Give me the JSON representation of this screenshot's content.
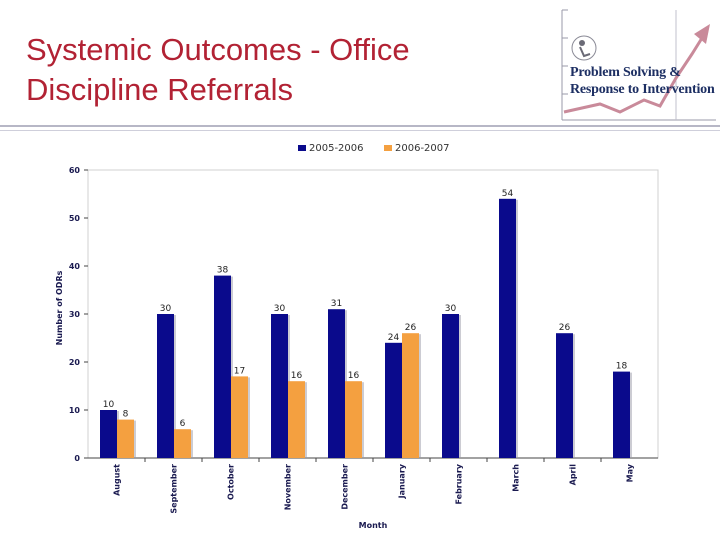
{
  "slide": {
    "title_line1": "Systemic Outcomes - Office",
    "title_line2": "Discipline Referrals"
  },
  "logo": {
    "line1": "Problem Solving &",
    "line2": "Response to Intervention"
  },
  "colors": {
    "title": "#b22234",
    "series_2005": "#0a0a8c",
    "series_2006": "#f4a040",
    "logo_text": "#1d2f63"
  },
  "chart_data": {
    "type": "bar",
    "xlabel": "Month",
    "ylabel": "Number of ODRs",
    "ylim": [
      0,
      60
    ],
    "yticks": [
      0,
      10,
      20,
      30,
      40,
      50,
      60
    ],
    "legend_position": "top-center",
    "grid": false,
    "categories": [
      "August",
      "September",
      "October",
      "November",
      "December",
      "January",
      "February",
      "March",
      "April",
      "May"
    ],
    "series": [
      {
        "name": "2005-2006",
        "values": [
          10,
          30,
          38,
          30,
          31,
          24,
          30,
          54,
          26,
          18
        ]
      },
      {
        "name": "2006-2007",
        "values": [
          8,
          6,
          17,
          16,
          16,
          26,
          null,
          null,
          null,
          null
        ]
      }
    ]
  }
}
